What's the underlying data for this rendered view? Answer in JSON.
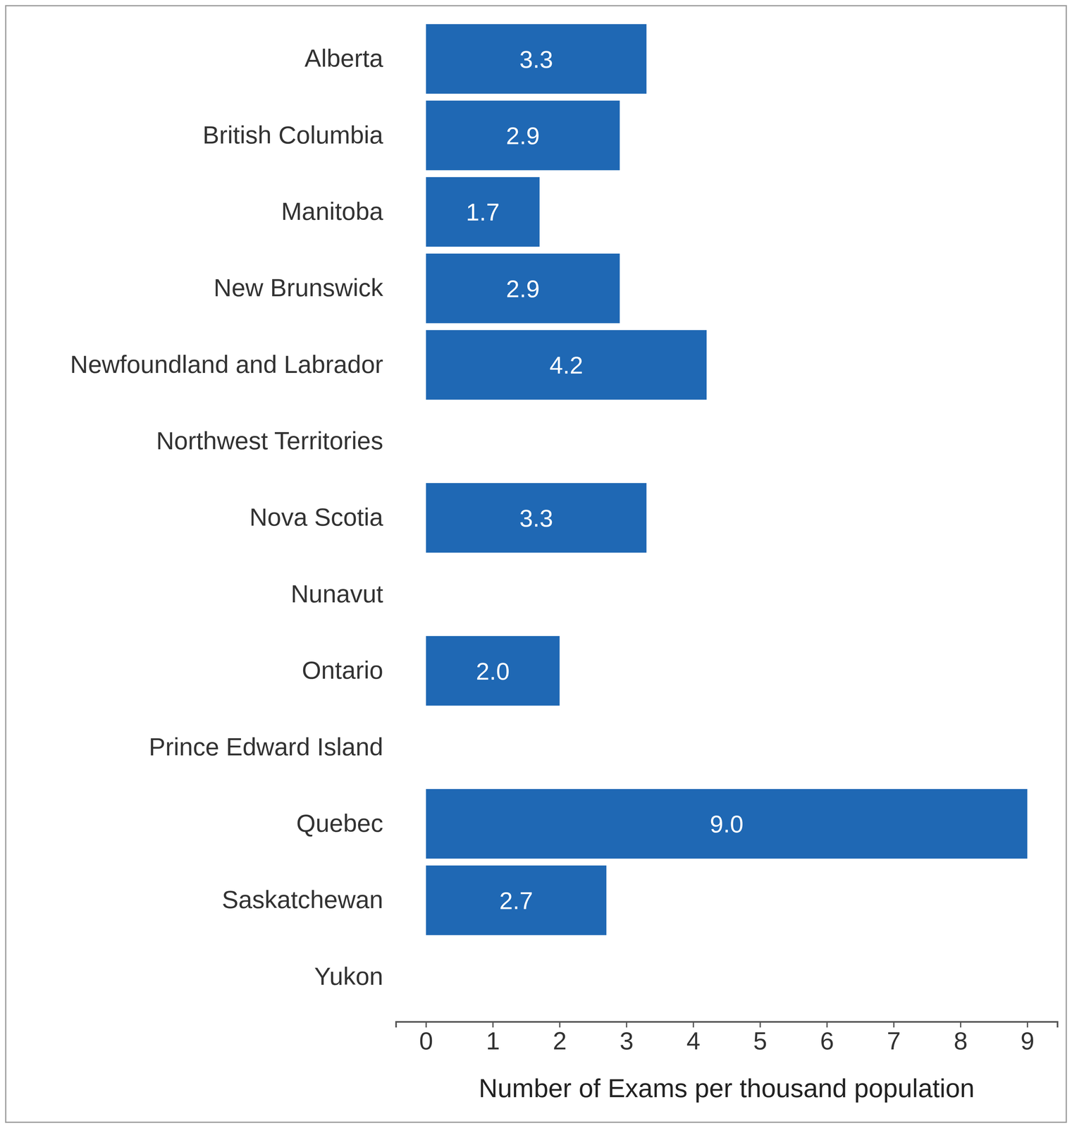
{
  "chart_data": {
    "type": "bar",
    "orientation": "horizontal",
    "x_label": "Number of Exams per thousand population",
    "categories": [
      "Alberta",
      "British Columbia",
      "Manitoba",
      "New Brunswick",
      "Newfoundland and Labrador",
      "Northwest Territories",
      "Nova Scotia",
      "Nunavut",
      "Ontario",
      "Prince Edward Island",
      "Quebec",
      "Saskatchewan",
      "Yukon"
    ],
    "values": [
      3.3,
      2.9,
      1.7,
      2.9,
      4.2,
      null,
      3.3,
      null,
      2.0,
      null,
      9.0,
      2.7,
      null
    ],
    "value_labels": [
      "3.3",
      "2.9",
      "1.7",
      "2.9",
      "4.2",
      null,
      "3.3",
      null,
      "2.0",
      null,
      "9.0",
      "2.7",
      null
    ],
    "color": "#1f68b4",
    "xlim": [
      -0.45,
      9.45
    ],
    "xticks": [
      0,
      1,
      2,
      3,
      4,
      5,
      6,
      7,
      8,
      9
    ],
    "grid": false,
    "data_labels": true
  }
}
